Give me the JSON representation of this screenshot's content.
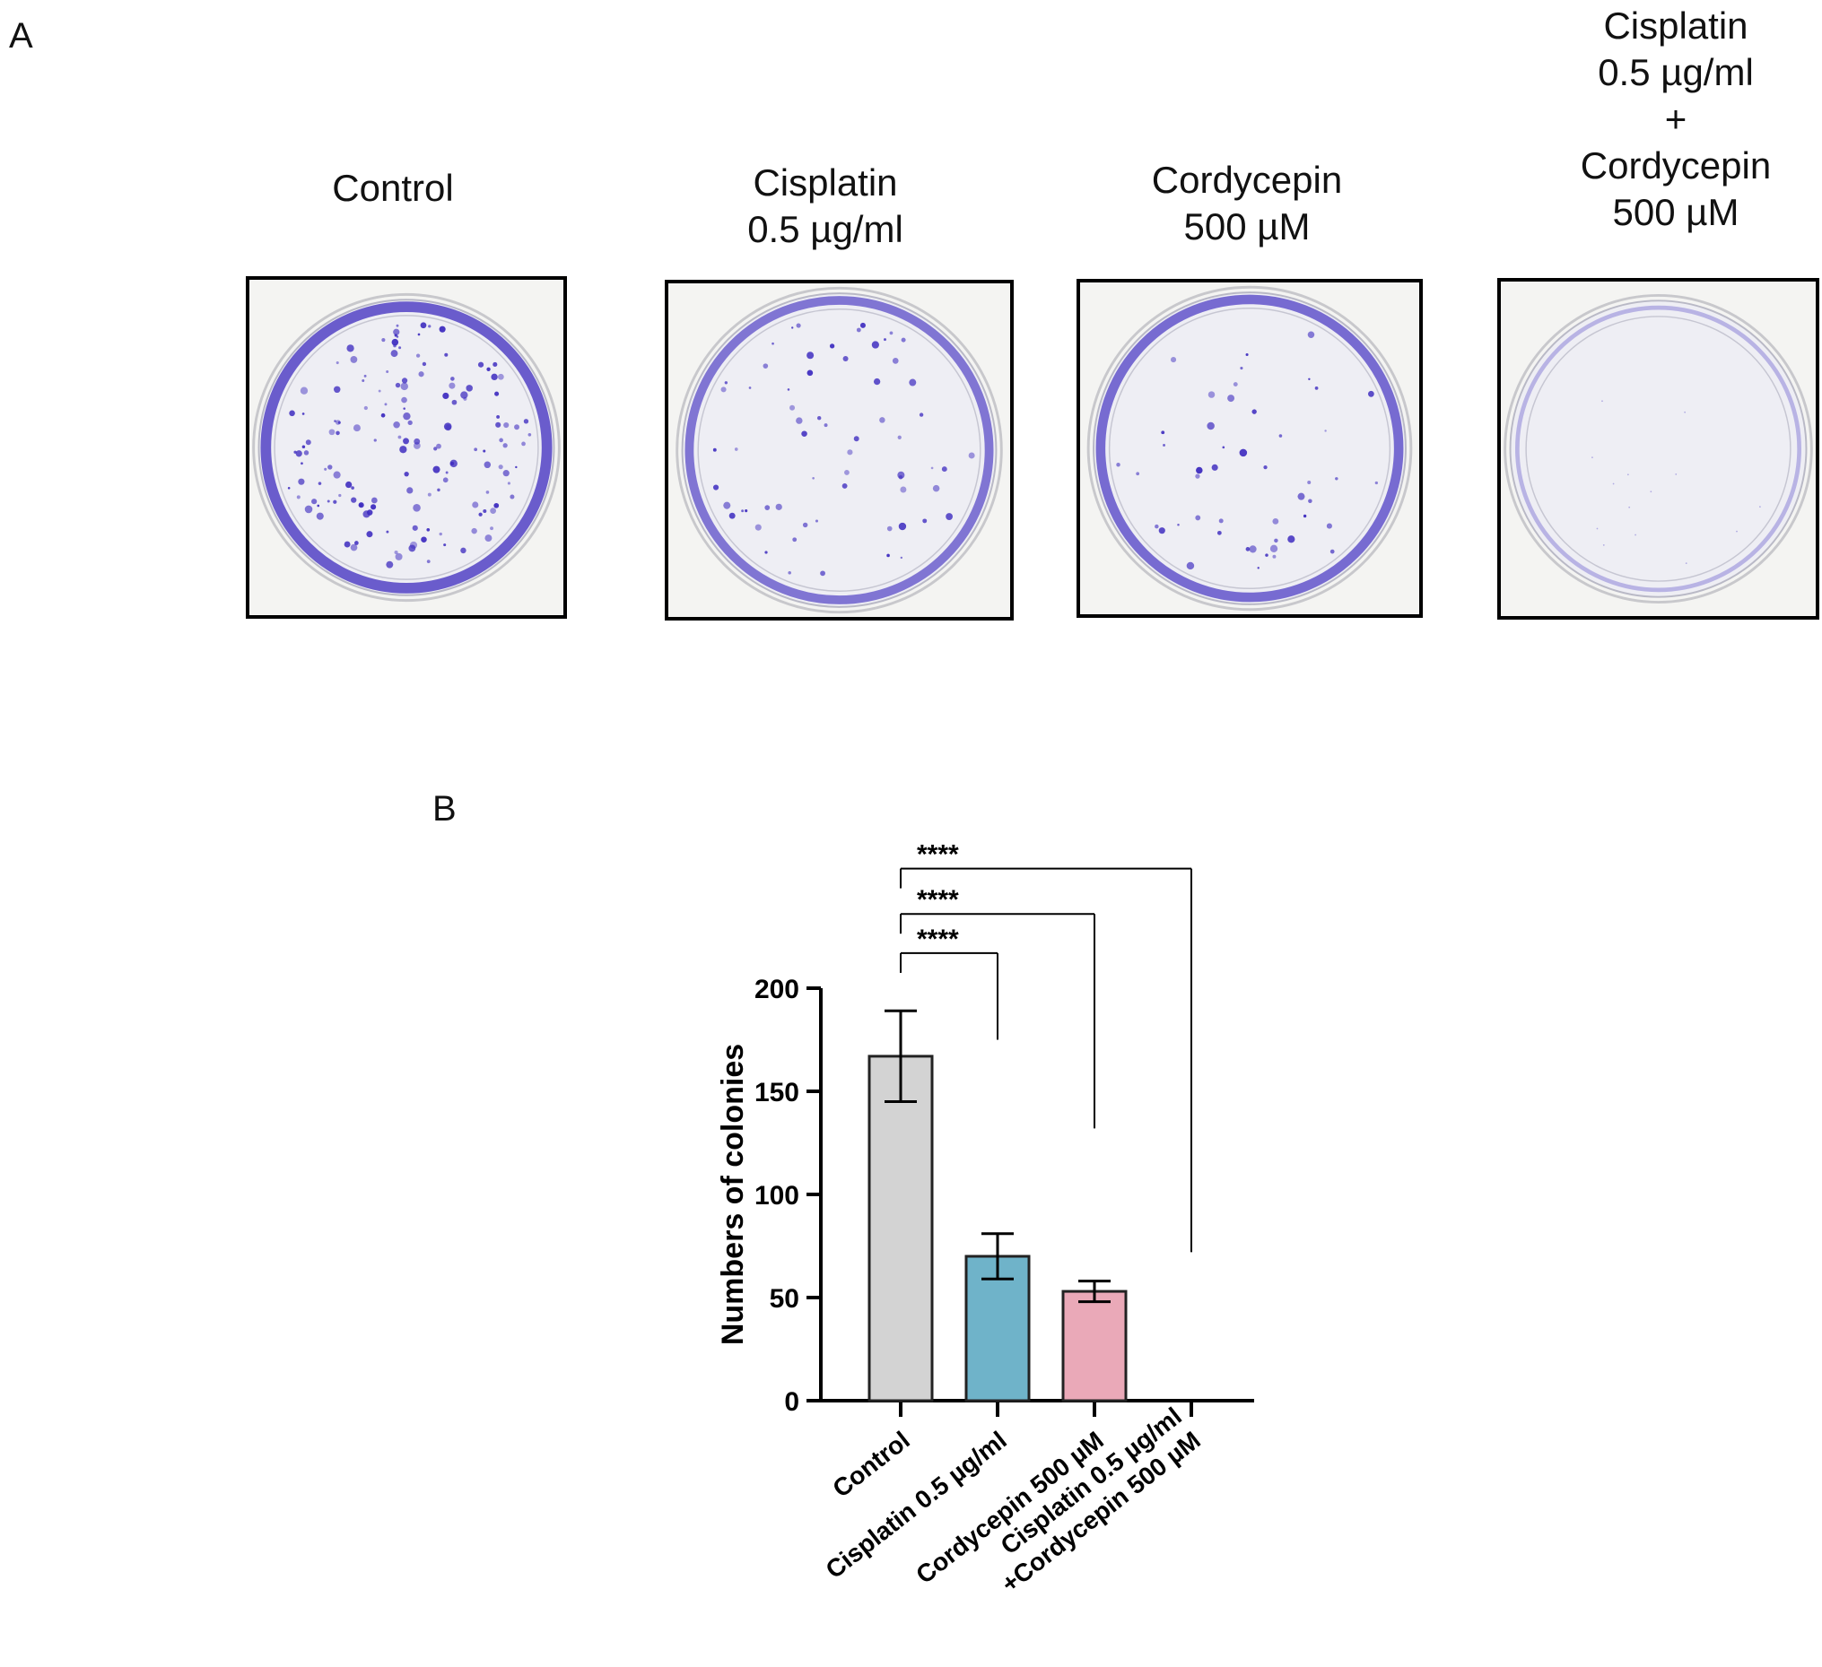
{
  "panel_a": {
    "letter": "A",
    "wells": [
      {
        "title_lines": [
          "Control"
        ],
        "colony_count": 167,
        "stain_density": 1.0
      },
      {
        "title_lines": [
          "Cisplatin",
          "0.5 µg/ml"
        ],
        "colony_count": 70,
        "stain_density": 0.75
      },
      {
        "title_lines": [
          "Cordycepin",
          "500 µM"
        ],
        "colony_count": 53,
        "stain_density": 0.85
      },
      {
        "title_lines": [
          "Cisplatin",
          "0.5 µg/ml",
          "+",
          "Cordycepin",
          "500 µM"
        ],
        "colony_count": 0,
        "stain_density": 0.1
      }
    ],
    "colors": {
      "stain": "#3d2bbf",
      "frame": "#000000",
      "plate": "#f4f4f2"
    }
  },
  "panel_b": {
    "letter": "B"
  },
  "chart_data": {
    "type": "bar",
    "title": "",
    "xlabel": "",
    "ylabel": "Numbers of colonies",
    "ylim": [
      0,
      200
    ],
    "yticks": [
      0,
      50,
      100,
      150,
      200
    ],
    "categories": [
      [
        "Control"
      ],
      [
        "Cisplatin 0.5  µg/ml"
      ],
      [
        "Cordycepin 500  µM"
      ],
      [
        "Cisplatin 0.5  µg/ml",
        "+Cordycepin 500 µM"
      ]
    ],
    "values": [
      167,
      70,
      53,
      0
    ],
    "errors": [
      22,
      11,
      5,
      0
    ],
    "colors": [
      "#d3d3d3",
      "#6fb3c9",
      "#eaa9b8",
      "#ffffff"
    ],
    "significance": [
      {
        "from": 0,
        "to": 1,
        "label": "****",
        "bracket_value": 217,
        "right_leg_end": 175
      },
      {
        "from": 0,
        "to": 2,
        "label": "****",
        "bracket_value": 236,
        "right_leg_end": 132
      },
      {
        "from": 0,
        "to": 3,
        "label": "****",
        "bracket_value": 258,
        "right_leg_end": 72
      }
    ],
    "grid": false,
    "legend": "none"
  }
}
